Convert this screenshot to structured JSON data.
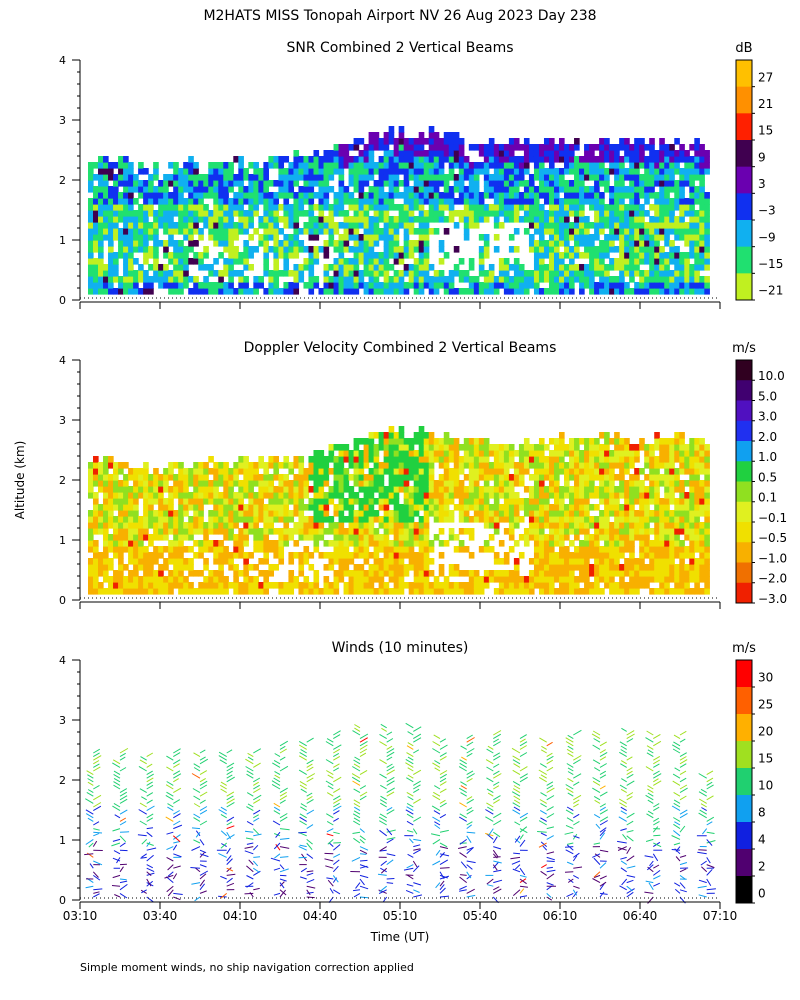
{
  "figure": {
    "title": "M2HATS MISS Tonopah Airport NV  26 Aug 2023 Day 238",
    "y_axis_label": "Altitude (km)",
    "x_axis_label": "Time (UT)",
    "footnote": "Simple moment winds, no ship navigation correction applied"
  },
  "chart_data": [
    {
      "type": "heatmap",
      "title": "SNR Combined 2 Vertical Beams",
      "ylabel": "Altitude (km)",
      "xlabel": "",
      "x_ticks": [
        "03:10",
        "03:40",
        "04:10",
        "04:40",
        "05:10",
        "05:40",
        "06:10",
        "06:40",
        "07:10"
      ],
      "x_range_minutes": [
        0,
        240
      ],
      "y_ticks": [
        "0",
        "1",
        "2",
        "3",
        "4"
      ],
      "ylim": [
        0,
        4
      ],
      "colorbar": {
        "unit": "dB",
        "labels": [
          "27",
          "21",
          "15",
          "9",
          "3",
          "−3",
          "−9",
          "−15",
          "−21"
        ],
        "colors": [
          "#ffc000",
          "#ff9000",
          "#ff2000",
          "#400050",
          "#6a00b0",
          "#1030f0",
          "#10b0f0",
          "#20e070",
          "#c0f020"
        ]
      },
      "data_top_km": [
        2.35,
        2.35,
        2.3,
        2.2,
        2.25,
        2.3,
        2.3,
        2.35,
        2.3,
        2.35,
        2.4,
        2.45,
        2.6,
        2.7,
        2.8,
        2.85,
        2.8,
        2.75,
        2.7,
        2.65,
        2.6,
        2.65,
        2.6,
        2.7,
        2.65,
        2.7,
        2.7,
        2.65,
        2.7,
        2.7,
        2.65
      ]
    },
    {
      "type": "heatmap",
      "title": "Doppler Velocity Combined 2 Vertical Beams",
      "ylabel": "Altitude (km)",
      "xlabel": "",
      "x_ticks": [
        "03:10",
        "03:40",
        "04:10",
        "04:40",
        "05:10",
        "05:40",
        "06:10",
        "06:40",
        "07:10"
      ],
      "x_range_minutes": [
        0,
        240
      ],
      "y_ticks": [
        "0",
        "1",
        "2",
        "3",
        "4"
      ],
      "ylim": [
        0,
        4
      ],
      "colorbar": {
        "unit": "m/s",
        "labels": [
          "10.0",
          "5.0",
          "3.0",
          "2.0",
          "1.0",
          "0.5",
          "0.1",
          "−0.1",
          "−0.5",
          "−1.0",
          "−2.0",
          "−3.0"
        ],
        "colors": [
          "#300020",
          "#400070",
          "#5010c0",
          "#2030f0",
          "#10a0f0",
          "#20d040",
          "#90e020",
          "#e0f020",
          "#f0e000",
          "#f8b000",
          "#f07000",
          "#f02000"
        ]
      },
      "data_top_km": [
        2.35,
        2.35,
        2.3,
        2.2,
        2.25,
        2.3,
        2.3,
        2.35,
        2.3,
        2.35,
        2.4,
        2.45,
        2.6,
        2.7,
        2.8,
        2.85,
        2.8,
        2.75,
        2.7,
        2.65,
        2.6,
        2.65,
        2.6,
        2.7,
        2.65,
        2.7,
        2.7,
        2.65,
        2.7,
        2.7,
        2.65
      ]
    },
    {
      "type": "scatter",
      "subtype": "wind-barbs",
      "title": "Winds (10 minutes)",
      "ylabel": "Altitude (km)",
      "xlabel": "Time (UT)",
      "x_ticks": [
        "03:10",
        "03:40",
        "04:10",
        "04:40",
        "05:10",
        "05:40",
        "06:10",
        "06:40",
        "07:10"
      ],
      "x_range_minutes": [
        0,
        240
      ],
      "y_ticks": [
        "0",
        "1",
        "2",
        "3",
        "4"
      ],
      "ylim": [
        0,
        4
      ],
      "colorbar": {
        "unit": "m/s",
        "labels": [
          "30",
          "25",
          "20",
          "15",
          "10",
          "8",
          "4",
          "2",
          "0"
        ],
        "colors": [
          "#ff0000",
          "#ff6000",
          "#ffb000",
          "#a0e020",
          "#20d070",
          "#10a0f0",
          "#1020e0",
          "#500070",
          "#000000"
        ]
      },
      "profile_minutes": [
        5,
        15,
        25,
        35,
        45,
        55,
        65,
        75,
        85,
        95,
        105,
        115,
        125,
        135,
        145,
        155,
        165,
        175,
        185,
        195,
        205,
        215,
        225,
        235
      ],
      "profile_top_km": [
        2.5,
        2.5,
        2.45,
        2.5,
        2.5,
        2.5,
        2.5,
        2.6,
        2.65,
        2.8,
        2.9,
        2.9,
        2.9,
        2.75,
        2.7,
        2.8,
        2.7,
        2.65,
        2.8,
        2.8,
        2.85,
        2.8,
        2.8,
        2.15
      ]
    }
  ]
}
